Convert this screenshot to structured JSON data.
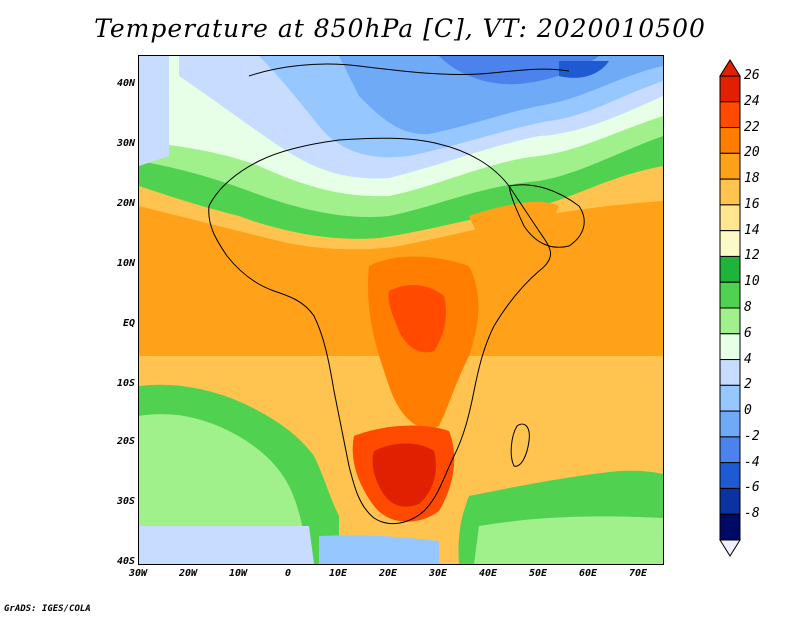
{
  "title": "Temperature at 850hPa [C], VT: 2020010500",
  "credit": "GrADS: IGES/COLA",
  "lat_labels": [
    "40N",
    "30N",
    "20N",
    "10N",
    "EQ",
    "10S",
    "20S",
    "30S",
    "40S"
  ],
  "lon_labels": [
    "30W",
    "20W",
    "10W",
    "0",
    "10E",
    "20E",
    "30E",
    "40E",
    "50E",
    "60E",
    "70E"
  ],
  "colorbar": {
    "labels": [
      "26",
      "24",
      "22",
      "20",
      "18",
      "16",
      "14",
      "12",
      "10",
      "8",
      "6",
      "4",
      "2",
      "0",
      "-2",
      "-4",
      "-6",
      "-8"
    ],
    "colors": [
      "#e02000",
      "#ff4a00",
      "#ff7d00",
      "#ffa219",
      "#ffc450",
      "#ffe68f",
      "#fbfac8",
      "#1eb43c",
      "#50d250",
      "#a0f08c",
      "#e6ffe6",
      "#c8dcff",
      "#96c8ff",
      "#6eaaf5",
      "#4b82eb",
      "#1e5ad2",
      "#0a32a0",
      "#000a64"
    ]
  },
  "map": {
    "region": "Africa",
    "variable": "temperature_850hPa",
    "units": "C",
    "valid_time": "2020010500"
  }
}
